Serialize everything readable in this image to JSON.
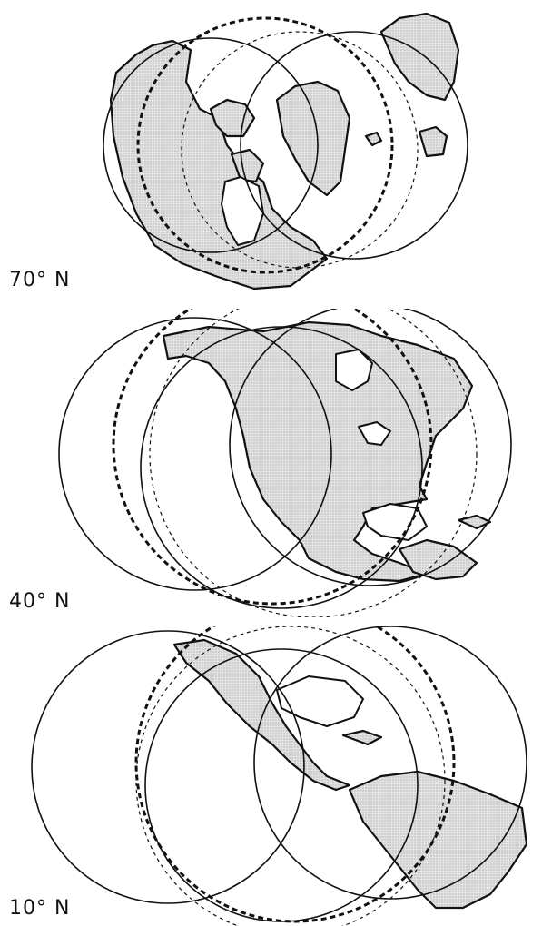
{
  "panels": [
    {
      "id": "70n",
      "label": "70° N"
    },
    {
      "id": "40n",
      "label": "40° N"
    },
    {
      "id": "10n",
      "label": "10° N"
    }
  ]
}
